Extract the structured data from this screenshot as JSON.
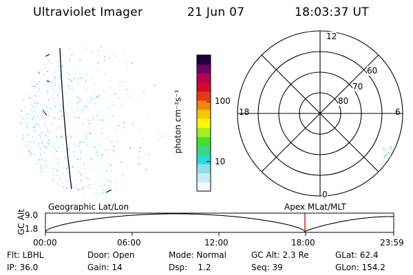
{
  "header": {
    "instrument": "Ultraviolet Imager",
    "date": "21 Jun 07",
    "time": "18:03:37 UT"
  },
  "colorbar": {
    "unit_label": "photon cm⁻²s⁻¹",
    "ticks": [
      "100",
      "10"
    ],
    "scale": "log",
    "colors": [
      "#f4f8f8",
      "#c6eef0",
      "#90e0e4",
      "#28d8dc",
      "#38d888",
      "#40e030",
      "#a0f020",
      "#f8f800",
      "#f8c800",
      "#f08800",
      "#e83818",
      "#d80828",
      "#b80050",
      "#700060",
      "#200040"
    ]
  },
  "panels": {
    "left_label": "Geographic Lat/Lon",
    "right_label": "Apex MLat/MLT"
  },
  "polar_plot": {
    "mlt_labels": {
      "top": "12",
      "left": "18",
      "right": "6",
      "bottom": "0"
    },
    "lat_labels": [
      "60",
      "70",
      "80"
    ]
  },
  "altitude_plot": {
    "axis_title": "GC Alt",
    "y_ticks": [
      "9.0",
      "1.8"
    ],
    "x_ticks": [
      "00:00",
      "06:00",
      "12:00",
      "18:00",
      "23:59"
    ],
    "current_time_marker": "18:03"
  },
  "status": {
    "flt": "Flt: LBHL",
    "ip": "IP: 36.0",
    "door": "Door: Open",
    "gain": "Gain: 14",
    "mode": "Mode: Normal",
    "dsp": "Dsp:    1.2",
    "gcalt": "GC Alt: 2.3 Re",
    "seq": "Seq: 39",
    "glat": "GLat: 62.4",
    "glon": "GLon: 154.2"
  },
  "colors": {
    "marker": "#c00000",
    "speckle": "#7fd8e0"
  }
}
